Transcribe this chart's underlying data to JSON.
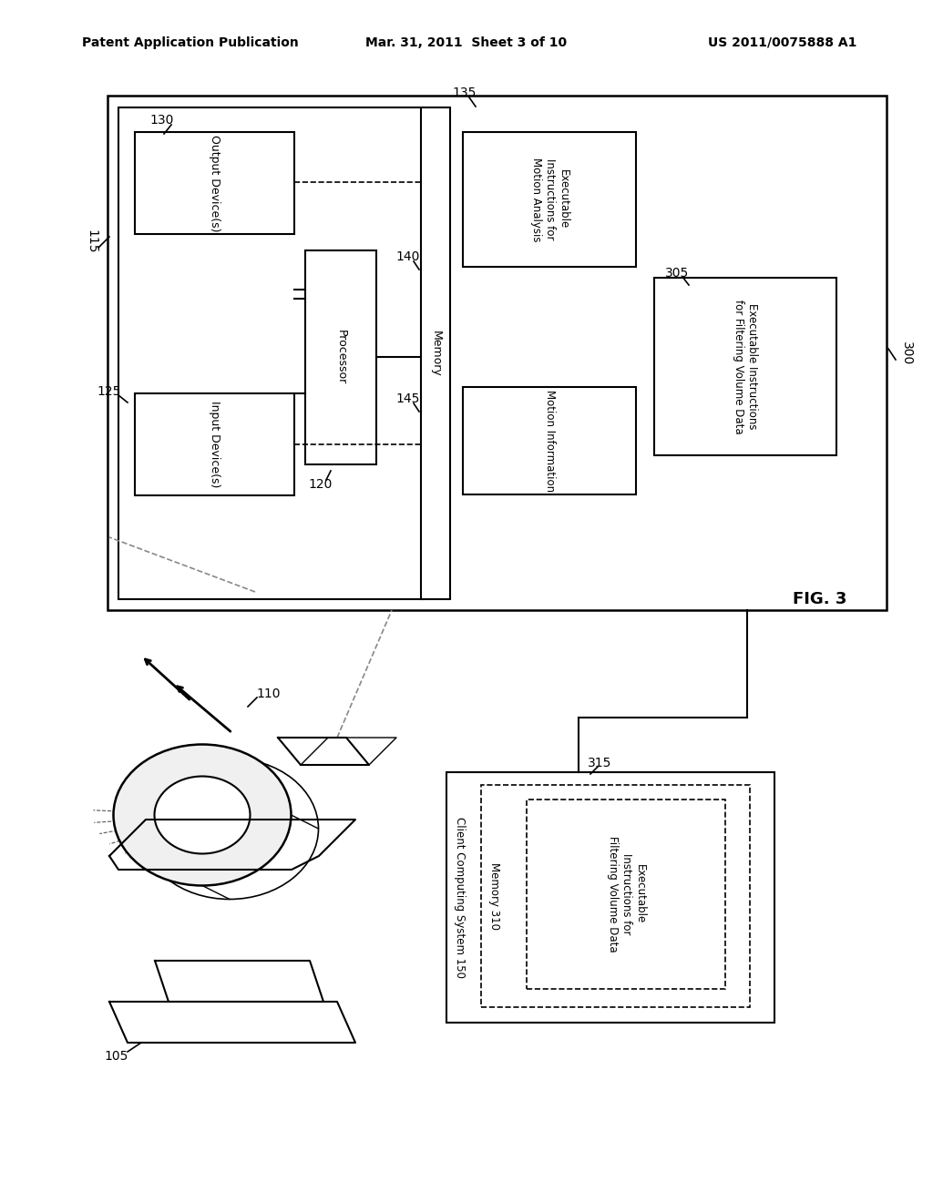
{
  "bg_color": "#ffffff",
  "header_left": "Patent Application Publication",
  "header_center": "Mar. 31, 2011  Sheet 3 of 10",
  "header_right": "US 2011/0075888 A1",
  "fig_label": "FIG. 3",
  "label_300": "300",
  "label_115": "115",
  "label_130": "130",
  "label_135": "135",
  "label_140": "140",
  "label_145": "145",
  "label_120": "120",
  "label_125": "125",
  "label_305": "305",
  "label_110": "110",
  "label_105": "105",
  "label_315": "315",
  "box_output": "Output Device(s)",
  "box_input": "Input Device(s)",
  "box_processor": "Processor",
  "box_memory": "Memory",
  "box_exec_motion": "Executable\nInstructions for\nMotion Analysis",
  "box_motion_info": "Motion Information",
  "box_exec_filter": "Executable Instructions\nfor Filtering Volume Data",
  "box_exec_filter2": "Executable\nInstructions for\nFiltering Volume Data",
  "client_box_label": "Client Computing System 150",
  "client_memory_label": "Memory 310"
}
